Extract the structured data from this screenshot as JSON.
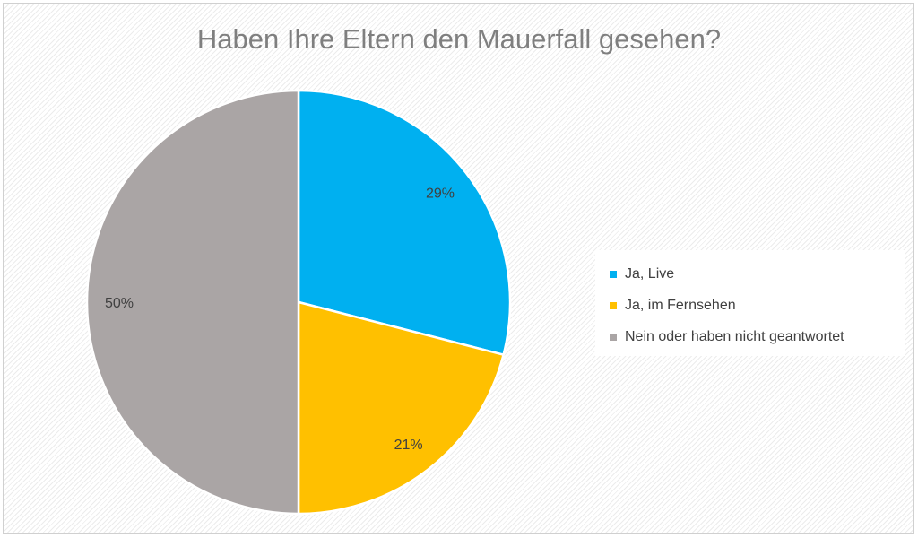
{
  "chart_data": {
    "type": "pie",
    "title": "Haben Ihre Eltern den Mauerfall gesehen?",
    "categories": [
      "Ja, Live",
      "Ja, im Fernsehen",
      "Nein oder haben nicht geantwortet"
    ],
    "values": [
      29,
      21,
      50
    ],
    "data_labels": [
      "29%",
      "21%",
      "50%"
    ],
    "colors": [
      "#00b0f0",
      "#ffc000",
      "#aaa5a5"
    ],
    "legend_position": "right",
    "start_angle": "top, clockwise"
  }
}
